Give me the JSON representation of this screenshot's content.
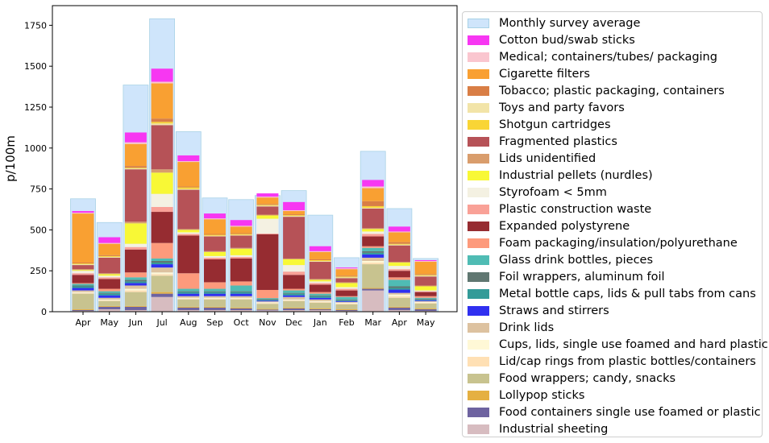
{
  "chart_data": {
    "type": "bar",
    "stacked": true,
    "title": "",
    "xlabel": "",
    "ylabel": "p/100m",
    "ylim": [
      0,
      1870
    ],
    "yticks": [
      0,
      250,
      500,
      750,
      1000,
      1250,
      1500,
      1750
    ],
    "categories": [
      "Apr",
      "May",
      "Jun",
      "Jul",
      "Aug",
      "Sep",
      "Oct",
      "Nov",
      "Dec",
      "Jan",
      "Feb",
      "Mar",
      "Apr",
      "May"
    ],
    "average": {
      "name": "Monthly survey average",
      "color": "#cfe5fb",
      "values": [
        690,
        545,
        1385,
        1790,
        1100,
        695,
        685,
        710,
        740,
        590,
        330,
        980,
        630,
        325
      ]
    },
    "legend_position": "outside-right",
    "series": [
      {
        "name": "Industrial sheeting",
        "color": "#d7bcc0",
        "values": [
          5,
          15,
          10,
          90,
          10,
          10,
          10,
          8,
          10,
          10,
          5,
          130,
          10,
          5
        ]
      },
      {
        "name": "Food containers single use foamed or plastic",
        "color": "#6e63a0",
        "values": [
          5,
          15,
          20,
          20,
          15,
          15,
          10,
          5,
          10,
          5,
          5,
          10,
          15,
          10
        ]
      },
      {
        "name": "Lollypop sticks",
        "color": "#e5b042",
        "values": [
          5,
          5,
          5,
          10,
          5,
          5,
          5,
          5,
          5,
          5,
          5,
          5,
          5,
          5
        ]
      },
      {
        "name": "Food wrappers; candy, snacks",
        "color": "#c8c38f",
        "values": [
          95,
          30,
          85,
          100,
          45,
          45,
          50,
          30,
          40,
          35,
          30,
          145,
          55,
          30
        ]
      },
      {
        "name": "Lid/cap rings from plastic bottles/containers",
        "color": "#ffe0b4",
        "values": [
          5,
          5,
          10,
          10,
          5,
          5,
          5,
          5,
          5,
          5,
          5,
          10,
          10,
          5
        ]
      },
      {
        "name": "Cups, lids, single use foamed and hard plastic",
        "color": "#fff8d6",
        "values": [
          5,
          5,
          10,
          10,
          5,
          5,
          5,
          5,
          5,
          5,
          5,
          10,
          10,
          5
        ]
      },
      {
        "name": "Drink lids",
        "color": "#ddc2a0",
        "values": [
          10,
          10,
          20,
          30,
          10,
          10,
          10,
          5,
          15,
          10,
          5,
          20,
          10,
          5
        ]
      },
      {
        "name": "Straws and stirrers",
        "color": "#3030f0",
        "values": [
          15,
          15,
          15,
          20,
          15,
          15,
          15,
          5,
          10,
          10,
          5,
          20,
          20,
          5
        ]
      },
      {
        "name": "Metal bottle caps, lids & pull tabs from cans",
        "color": "#339b98",
        "values": [
          10,
          10,
          10,
          10,
          10,
          10,
          10,
          5,
          10,
          10,
          5,
          10,
          10,
          5
        ]
      },
      {
        "name": "Foil wrappers, aluminum foil",
        "color": "#607771",
        "values": [
          5,
          5,
          10,
          10,
          5,
          5,
          5,
          5,
          5,
          5,
          5,
          10,
          10,
          5
        ]
      },
      {
        "name": "Glass drink bottles, pieces",
        "color": "#4fbcb4",
        "values": [
          10,
          10,
          15,
          15,
          15,
          15,
          35,
          5,
          15,
          10,
          15,
          20,
          40,
          5
        ]
      },
      {
        "name": "Foam packaging/insulation/polyurethane",
        "color": "#fd9a7c",
        "values": [
          5,
          15,
          30,
          95,
          95,
          40,
          25,
          50,
          10,
          10,
          5,
          10,
          15,
          10
        ]
      },
      {
        "name": "Expanded polystyrene",
        "color": "#962c31",
        "values": [
          50,
          60,
          140,
          190,
          230,
          140,
          140,
          340,
          85,
          45,
          35,
          60,
          40,
          25
        ]
      },
      {
        "name": "Plastic construction waste",
        "color": "#f9a197",
        "values": [
          10,
          10,
          15,
          30,
          10,
          10,
          10,
          5,
          20,
          10,
          10,
          15,
          10,
          5
        ]
      },
      {
        "name": "Styrofoam < 5mm",
        "color": "#f4f1e2",
        "values": [
          15,
          10,
          20,
          80,
          10,
          10,
          10,
          90,
          40,
          10,
          10,
          15,
          20,
          5
        ]
      },
      {
        "name": "Industrial pellets (nurdles)",
        "color": "#f8f836",
        "values": [
          5,
          10,
          125,
          130,
          15,
          25,
          40,
          20,
          35,
          10,
          25,
          15,
          20,
          25
        ]
      },
      {
        "name": "Lids unidentified",
        "color": "#d99d6c",
        "values": [
          5,
          5,
          10,
          20,
          5,
          5,
          5,
          5,
          5,
          5,
          5,
          5,
          5,
          5
        ]
      },
      {
        "name": "Fragmented plastics",
        "color": "#b65257",
        "values": [
          25,
          95,
          320,
          270,
          240,
          90,
          75,
          50,
          255,
          105,
          25,
          120,
          100,
          55
        ]
      },
      {
        "name": "Toys and party favors",
        "color": "#f2e4a8",
        "values": [
          5,
          5,
          5,
          10,
          5,
          5,
          5,
          5,
          5,
          5,
          5,
          5,
          5,
          5
        ]
      },
      {
        "name": "Shotgun cartridges",
        "color": "#f9d535",
        "values": [
          5,
          5,
          5,
          10,
          10,
          5,
          5,
          5,
          5,
          5,
          5,
          10,
          5,
          5
        ]
      },
      {
        "name": "Tobacco; plastic packaging, containers",
        "color": "#d97e45",
        "values": [
          5,
          5,
          10,
          20,
          5,
          5,
          5,
          5,
          5,
          5,
          5,
          30,
          10,
          5
        ]
      },
      {
        "name": "Cigarette filters",
        "color": "#f9a032",
        "values": [
          300,
          70,
          135,
          215,
          150,
          90,
          40,
          40,
          20,
          45,
          40,
          80,
          60,
          75
        ]
      },
      {
        "name": "Medical; containers/tubes/ packaging",
        "color": "#fac6cf",
        "values": [
          5,
          5,
          10,
          10,
          5,
          5,
          5,
          5,
          5,
          5,
          5,
          10,
          5,
          5
        ]
      },
      {
        "name": "Cotton bud/swab sticks",
        "color": "#f737f2",
        "values": [
          10,
          35,
          60,
          80,
          35,
          30,
          35,
          20,
          50,
          30,
          5,
          40,
          30,
          5
        ]
      }
    ]
  },
  "legend_items": [
    {
      "label": "Monthly survey average",
      "color": "#cfe5fb"
    },
    {
      "label": "Cotton bud/swab sticks",
      "color": "#f737f2"
    },
    {
      "label": "Medical; containers/tubes/ packaging",
      "color": "#fac6cf"
    },
    {
      "label": "Cigarette filters",
      "color": "#f9a032"
    },
    {
      "label": "Tobacco; plastic packaging, containers",
      "color": "#d97e45"
    },
    {
      "label": "Toys and party favors",
      "color": "#f2e4a8"
    },
    {
      "label": "Shotgun cartridges",
      "color": "#f9d535"
    },
    {
      "label": "Fragmented plastics",
      "color": "#b65257"
    },
    {
      "label": "Lids unidentified",
      "color": "#d99d6c"
    },
    {
      "label": "Industrial pellets (nurdles)",
      "color": "#f8f836"
    },
    {
      "label": "Styrofoam < 5mm",
      "color": "#f4f1e2"
    },
    {
      "label": "Plastic construction waste",
      "color": "#f9a197"
    },
    {
      "label": "Expanded polystyrene",
      "color": "#962c31"
    },
    {
      "label": "Foam packaging/insulation/polyurethane",
      "color": "#fd9a7c"
    },
    {
      "label": "Glass drink bottles, pieces",
      "color": "#4fbcb4"
    },
    {
      "label": "Foil wrappers, aluminum foil",
      "color": "#607771"
    },
    {
      "label": "Metal bottle caps, lids & pull tabs from cans",
      "color": "#339b98"
    },
    {
      "label": "Straws and stirrers",
      "color": "#3030f0"
    },
    {
      "label": "Drink lids",
      "color": "#ddc2a0"
    },
    {
      "label": "Cups, lids, single use foamed and hard plastic",
      "color": "#fff8d6"
    },
    {
      "label": "Lid/cap rings from plastic bottles/containers",
      "color": "#ffe0b4"
    },
    {
      "label": "Food wrappers; candy, snacks",
      "color": "#c8c38f"
    },
    {
      "label": "Lollypop sticks",
      "color": "#e5b042"
    },
    {
      "label": "Food containers single use foamed or plastic",
      "color": "#6e63a0"
    },
    {
      "label": "Industrial sheeting",
      "color": "#d7bcc0"
    }
  ]
}
